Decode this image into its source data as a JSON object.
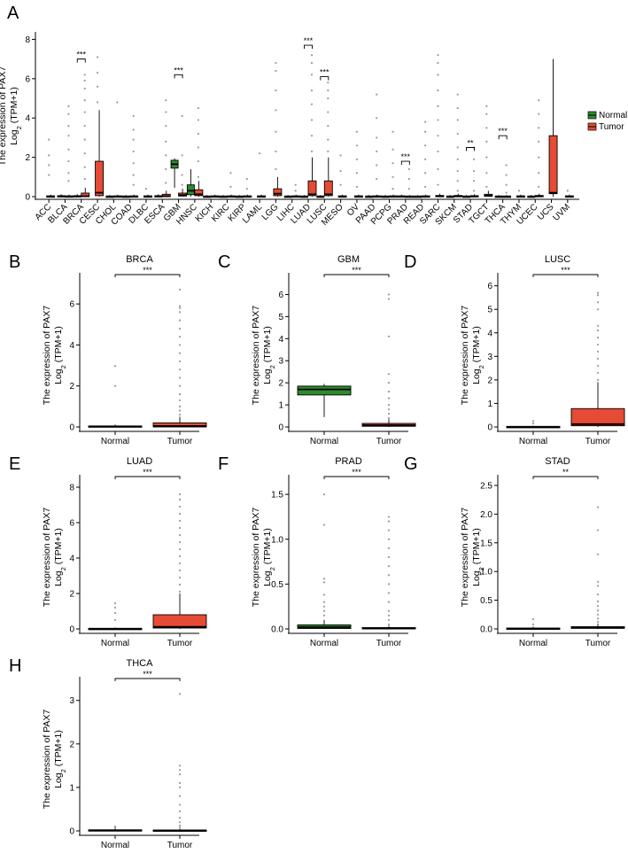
{
  "colors": {
    "normal": "#2e8b2e",
    "tumor": "#e64b35",
    "axis": "#000000",
    "outlier": "#9a9a9a"
  },
  "legend": {
    "items": [
      "Normal",
      "Tumor"
    ],
    "placement": "right"
  },
  "chart_data": [
    {
      "panel": "A",
      "type": "box",
      "title": "",
      "ylabel_lines": [
        "The expression of PAX7",
        "Log2 (TPM+1)"
      ],
      "ylim": [
        0,
        8.2
      ],
      "yticks": [
        0,
        2,
        4,
        6,
        8
      ],
      "categories": [
        "ACC",
        "BLCA",
        "BRCA",
        "CESC",
        "CHOL",
        "COAD",
        "DLBC",
        "ESCA",
        "GBM",
        "HNSC",
        "KICH",
        "KIRC",
        "KIRP",
        "LAML",
        "LGG",
        "LIHC",
        "LUAD",
        "LUSC",
        "MESO",
        "OV",
        "PAAD",
        "PCPG",
        "PRAD",
        "READ",
        "SARC",
        "SKCM",
        "STAD",
        "TGCT",
        "THCA",
        "THYM",
        "UCEC",
        "UCS",
        "UVM"
      ],
      "series": [
        {
          "name": "Normal",
          "boxes": {
            "BLCA": [
              0,
              0,
              0.02,
              0.05,
              0.12
            ],
            "BRCA": [
              0,
              0,
              0.02,
              0.05,
              0.12
            ],
            "CHOL": [
              0,
              0,
              0.01,
              0.03,
              0.08
            ],
            "COAD": [
              0,
              0,
              0.01,
              0.03,
              0.08
            ],
            "ESCA": [
              0,
              0,
              0.02,
              0.05,
              0.12
            ],
            "GBM": [
              0.45,
              1.45,
              1.65,
              1.85,
              1.95
            ],
            "HNSC": [
              0,
              0.1,
              0.3,
              0.6,
              1.4
            ],
            "KICH": [
              0,
              0,
              0.01,
              0.03,
              0.08
            ],
            "KIRC": [
              0,
              0,
              0.01,
              0.03,
              0.08
            ],
            "KIRP": [
              0,
              0,
              0.01,
              0.03,
              0.08
            ],
            "LIHC": [
              0,
              0,
              0.01,
              0.03,
              0.08
            ],
            "LUAD": [
              0,
              0,
              0.01,
              0.03,
              0.08
            ],
            "LUSC": [
              0,
              0,
              0.01,
              0.03,
              0.08
            ],
            "PAAD": [
              0,
              0,
              0.01,
              0.03,
              0.08
            ],
            "PCPG": [
              0,
              0,
              0.01,
              0.03,
              0.08
            ],
            "PRAD": [
              0,
              0,
              0.01,
              0.04,
              0.1
            ],
            "READ": [
              0,
              0,
              0.01,
              0.03,
              0.08
            ],
            "SKCM": [
              0,
              0,
              0.01,
              0.03,
              0.08
            ],
            "STAD": [
              0,
              0,
              0.01,
              0.03,
              0.08
            ],
            "THCA": [
              0,
              0,
              0.01,
              0.03,
              0.08
            ],
            "UCEC": [
              0,
              0,
              0.01,
              0.03,
              0.08
            ]
          }
        },
        {
          "name": "Tumor",
          "boxes": {
            "ACC": [
              0,
              0,
              0.01,
              0.04,
              0.1
            ],
            "BLCA": [
              0,
              0,
              0.01,
              0.04,
              0.1
            ],
            "BRCA": [
              0,
              0,
              0.02,
              0.18,
              0.45
            ],
            "CESC": [
              0,
              0.05,
              0.2,
              1.8,
              4.4
            ],
            "CHOL": [
              0,
              0,
              0.01,
              0.04,
              0.1
            ],
            "COAD": [
              0,
              0,
              0.01,
              0.04,
              0.1
            ],
            "DLBC": [
              0,
              0,
              0.01,
              0.04,
              0.1
            ],
            "ESCA": [
              0,
              0,
              0.02,
              0.12,
              0.3
            ],
            "GBM": [
              0,
              0.03,
              0.08,
              0.18,
              0.4
            ],
            "HNSC": [
              0,
              0.05,
              0.12,
              0.35,
              0.8
            ],
            "KICH": [
              0,
              0,
              0.01,
              0.04,
              0.1
            ],
            "KIRC": [
              0,
              0,
              0.01,
              0.04,
              0.1
            ],
            "KIRP": [
              0,
              0,
              0.01,
              0.04,
              0.1
            ],
            "LAML": [
              0,
              0,
              0.01,
              0.04,
              0.1
            ],
            "LGG": [
              0,
              0.05,
              0.15,
              0.4,
              1.0
            ],
            "LIHC": [
              0,
              0,
              0.01,
              0.04,
              0.1
            ],
            "LUAD": [
              0,
              0.05,
              0.12,
              0.8,
              2.0
            ],
            "LUSC": [
              0,
              0.05,
              0.12,
              0.8,
              2.0
            ],
            "MESO": [
              0,
              0,
              0.01,
              0.04,
              0.1
            ],
            "OV": [
              0,
              0,
              0.01,
              0.04,
              0.1
            ],
            "PAAD": [
              0,
              0,
              0.01,
              0.04,
              0.1
            ],
            "PCPG": [
              0,
              0,
              0.01,
              0.04,
              0.1
            ],
            "PRAD": [
              0,
              0,
              0.01,
              0.03,
              0.08
            ],
            "READ": [
              0,
              0,
              0.01,
              0.04,
              0.1
            ],
            "SARC": [
              0,
              0,
              0.02,
              0.06,
              0.15
            ],
            "SKCM": [
              0,
              0,
              0.02,
              0.06,
              0.15
            ],
            "STAD": [
              0,
              0,
              0.02,
              0.05,
              0.12
            ],
            "TGCT": [
              0,
              0.02,
              0.05,
              0.12,
              0.3
            ],
            "THCA": [
              0,
              0,
              0.01,
              0.03,
              0.08
            ],
            "THYM": [
              0,
              0,
              0.01,
              0.04,
              0.1
            ],
            "UCEC": [
              0,
              0,
              0.02,
              0.06,
              0.15
            ],
            "UCS": [
              0,
              0.15,
              0.2,
              3.1,
              7.0
            ],
            "UVM": [
              0,
              0,
              0.01,
              0.04,
              0.1
            ]
          }
        }
      ],
      "outliers": {
        "ACC": [
          1.1,
          1.6,
          2.1,
          2.9
        ],
        "BLCA": [
          0.8,
          1.2,
          1.8,
          2.4,
          3.1,
          3.6,
          4.2,
          4.6
        ],
        "BRCA": [
          0.9,
          1.5,
          2.2,
          2.9,
          3.6,
          4.3,
          4.9,
          5.5,
          5.9,
          6.2
        ],
        "CESC": [
          4.8,
          5.6,
          6.3,
          7.1
        ],
        "CHOL": [
          4.8
        ],
        "COAD": [
          0.6,
          1.1,
          1.7,
          2.3,
          2.9,
          3.4,
          4.1
        ],
        "DLBC": [
          0.4
        ],
        "ESCA": [
          0.7,
          1.4,
          2.1,
          2.8,
          3.6,
          4.3,
          4.9
        ],
        "GBM": [
          0.6,
          1.1,
          2.1,
          4.1
        ],
        "HNSC": [
          1.0,
          1.8,
          2.5,
          3.2,
          3.9,
          4.5
        ],
        "KIRC": [
          0.5,
          1.2
        ],
        "KIRP": [
          0.4,
          0.9
        ],
        "LAML": [
          2.2
        ],
        "LGG": [
          1.4,
          2.3,
          3.3,
          4.4,
          5.4,
          6.4,
          6.8
        ],
        "LIHC": [
          0.3,
          0.6
        ],
        "LUAD": [
          2.3,
          3.1,
          3.9,
          4.7,
          5.4,
          6.2,
          6.8,
          7.2
        ],
        "LUSC": [
          2.3,
          2.9,
          3.6,
          4.3,
          5.0,
          5.4,
          5.8
        ],
        "MESO": [
          0.6,
          1.3,
          2.1
        ],
        "OV": [
          0.5,
          1.2,
          1.9,
          2.6,
          3.3
        ],
        "PAAD": [
          0.9,
          1.6,
          2.3,
          3.0,
          4.0,
          5.2
        ],
        "PCPG": [
          0.4,
          1.0,
          1.7,
          2.4,
          3.3
        ],
        "PRAD": [
          0.4,
          0.9,
          1.4
        ],
        "READ": [
          0.5,
          1.2,
          1.9,
          2.6,
          3.3,
          3.8
        ],
        "SARC": [
          0.6,
          1.4,
          2.3,
          3.1,
          3.9,
          4.6,
          5.4,
          6.2,
          6.8,
          7.2
        ],
        "SKCM": [
          0.3,
          0.8,
          1.3,
          1.9,
          2.5,
          3.2,
          3.9,
          4.5,
          5.2
        ],
        "STAD": [
          0.3,
          0.8,
          1.3,
          1.9,
          2.5
        ],
        "TGCT": [
          0.5,
          1.2,
          2.0,
          2.8,
          3.5,
          4.2,
          4.6
        ],
        "THCA": [
          0.2,
          0.6,
          1.1,
          1.6
        ],
        "THYM": [
          0.3
        ],
        "UCEC": [
          0.5,
          1.2,
          2.0,
          2.8,
          3.5,
          4.2,
          4.9
        ],
        "UVM": [
          0.3
        ]
      },
      "significance": [
        {
          "category": "BRCA",
          "label": "***",
          "y": 7.0
        },
        {
          "category": "GBM",
          "label": "***",
          "y": 6.2
        },
        {
          "category": "LUAD",
          "label": "***",
          "y": 7.7
        },
        {
          "category": "LUSC",
          "label": "***",
          "y": 6.1
        },
        {
          "category": "PRAD",
          "label": "***",
          "y": 1.8
        },
        {
          "category": "STAD",
          "label": "**",
          "y": 2.5
        },
        {
          "category": "THCA",
          "label": "***",
          "y": 3.1
        }
      ]
    },
    {
      "panel": "B",
      "type": "box",
      "title": "BRCA",
      "ylabel_lines": [
        "The expression of PAX7",
        "Log2 (TPM+1)"
      ],
      "ylim": [
        0,
        7
      ],
      "yticks": [
        0,
        2,
        4,
        6
      ],
      "categories": [
        "Normal",
        "Tumor"
      ],
      "significance": "***",
      "boxes": [
        [
          0,
          0,
          0.02,
          0.05,
          0.12
        ],
        [
          0,
          0,
          0.05,
          0.2,
          0.5
        ]
      ],
      "outliers": [
        [
          2.0,
          2.97
        ],
        [
          0.6,
          0.8,
          1.0,
          1.3,
          1.6,
          2.0,
          2.4,
          2.8,
          3.2,
          3.6,
          4.0,
          4.4,
          4.8,
          5.2,
          5.6,
          5.8,
          5.9,
          6.7
        ]
      ]
    },
    {
      "panel": "C",
      "type": "box",
      "title": "GBM",
      "ylabel_lines": [
        "The expression of PAX7",
        "Log2 (TPM+1)"
      ],
      "ylim": [
        0,
        6.5
      ],
      "yticks": [
        0,
        1,
        2,
        3,
        4,
        5,
        6
      ],
      "categories": [
        "Normal",
        "Tumor"
      ],
      "significance": "***",
      "boxes": [
        [
          0.45,
          1.45,
          1.7,
          1.85,
          1.95
        ],
        [
          0,
          0.03,
          0.08,
          0.16,
          0.35
        ]
      ],
      "outliers": [
        [],
        [
          0.4,
          0.6,
          0.8,
          1.0,
          1.3,
          1.6,
          2.0,
          2.4,
          4.1,
          5.8,
          6.0
        ]
      ]
    },
    {
      "panel": "D",
      "type": "box",
      "title": "LUSC",
      "ylabel_lines": [
        "The expression of PAX7",
        "Log2 (TPM+1)"
      ],
      "ylim": [
        0,
        6.1
      ],
      "yticks": [
        0,
        1,
        2,
        3,
        4,
        5,
        6
      ],
      "categories": [
        "Normal",
        "Tumor"
      ],
      "significance": "***",
      "boxes": [
        [
          0,
          0,
          0.01,
          0.02,
          0.05
        ],
        [
          0,
          0.05,
          0.12,
          0.78,
          1.9
        ]
      ],
      "outliers": [
        [
          0.15,
          0.25
        ],
        [
          2.0,
          2.3,
          2.6,
          2.9,
          3.2,
          3.5,
          3.8,
          4.1,
          4.3,
          5.0,
          5.3,
          5.6,
          5.7
        ]
      ]
    },
    {
      "panel": "E",
      "type": "box",
      "title": "LUAD",
      "ylabel_lines": [
        "The expression of PAX7",
        "Log2 (TPM+1)"
      ],
      "ylim": [
        0,
        8.1
      ],
      "yticks": [
        0,
        2,
        4,
        6,
        8
      ],
      "categories": [
        "Normal",
        "Tumor"
      ],
      "significance": "***",
      "boxes": [
        [
          0,
          0,
          0.01,
          0.03,
          0.08
        ],
        [
          0,
          0.05,
          0.12,
          0.8,
          2.0
        ]
      ],
      "outliers": [
        [
          0.5,
          0.9,
          1.2,
          1.45
        ],
        [
          2.1,
          2.5,
          2.9,
          3.3,
          3.7,
          4.1,
          4.5,
          4.9,
          5.3,
          5.7,
          6.1,
          6.5,
          6.9,
          7.3,
          7.6
        ]
      ]
    },
    {
      "panel": "F",
      "type": "box",
      "title": "PRAD",
      "ylabel_lines": [
        "The expression of PAX7",
        "Log2 (TPM+1)"
      ],
      "ylim": [
        0,
        1.6
      ],
      "yticks": [
        0.0,
        0.5,
        1.0,
        1.5
      ],
      "categories": [
        "Normal",
        "Tumor"
      ],
      "significance": "***",
      "boxes": [
        [
          0,
          0.005,
          0.02,
          0.045,
          0.1
        ],
        [
          0,
          0,
          0.005,
          0.015,
          0.035
        ]
      ],
      "outliers": [
        [
          0.15,
          0.2,
          0.25,
          0.3,
          0.38,
          0.52,
          0.56,
          1.16,
          1.5
        ],
        [
          0.05,
          0.1,
          0.15,
          0.2,
          0.3,
          0.4,
          0.5,
          0.6,
          0.7,
          0.8,
          0.9,
          1.0,
          1.1,
          1.2,
          1.25
        ]
      ]
    },
    {
      "panel": "G",
      "type": "box",
      "title": "STAD",
      "ylabel_lines": [
        "The expression of PAX7",
        "Log2 (TPM+1)"
      ],
      "ylim": [
        0,
        2.5
      ],
      "yticks": [
        0.0,
        0.5,
        1.0,
        1.5,
        2.0,
        2.5
      ],
      "categories": [
        "Normal",
        "Tumor"
      ],
      "significance": "**",
      "boxes": [
        [
          0,
          0,
          0.005,
          0.015,
          0.04
        ],
        [
          0,
          0.01,
          0.02,
          0.04,
          0.09
        ]
      ],
      "outliers": [
        [
          0.08,
          0.17
        ],
        [
          0.12,
          0.18,
          0.25,
          0.32,
          0.4,
          0.48,
          0.6,
          0.75,
          0.82,
          1.3,
          1.72,
          2.12
        ]
      ]
    },
    {
      "panel": "H",
      "type": "box",
      "title": "THCA",
      "ylabel_lines": [
        "The expression of PAX7",
        "Log2 (TPM+1)"
      ],
      "ylim": [
        0,
        3.3
      ],
      "yticks": [
        0,
        1,
        2,
        3
      ],
      "categories": [
        "Normal",
        "Tumor"
      ],
      "significance": "***",
      "boxes": [
        [
          0,
          0,
          0.01,
          0.025,
          0.05
        ],
        [
          0,
          0,
          0.01,
          0.02,
          0.04
        ]
      ],
      "outliers": [
        [
          0.07,
          0.1
        ],
        [
          0.07,
          0.12,
          0.2,
          0.3,
          0.45,
          0.6,
          0.8,
          1.0,
          1.1,
          1.3,
          1.4,
          1.5,
          3.15
        ]
      ]
    }
  ]
}
